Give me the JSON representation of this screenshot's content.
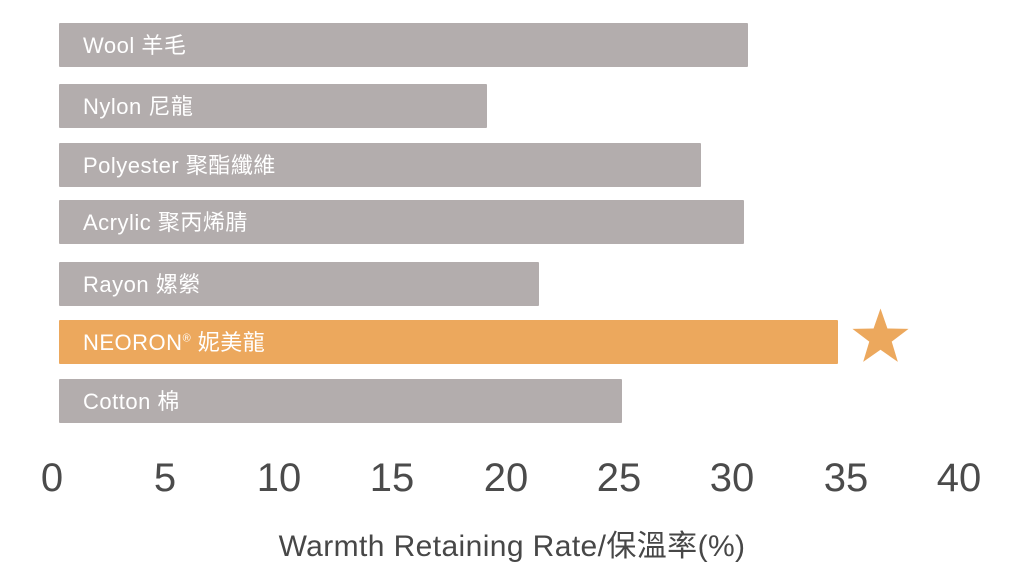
{
  "chart_data": {
    "type": "bar",
    "orientation": "horizontal",
    "categories": [
      "Wool 羊毛",
      "Nylon 尼龍",
      "Polyester 聚酯纖維",
      "Acrylic 聚丙烯腈",
      "Rayon 嫘縈",
      "NEORON® 妮美龍",
      "Cotton 棉"
    ],
    "values": [
      30.6,
      19,
      28.5,
      30.4,
      21.3,
      34.6,
      25
    ],
    "highlight_index": 5,
    "highlight_marker": "star",
    "xlabel": "Warmth Retaining Rate/保溫率(%)",
    "xlim": [
      0,
      40
    ],
    "xticks": [
      0,
      5,
      10,
      15,
      20,
      25,
      30,
      35,
      40
    ],
    "grid": false,
    "legend": false,
    "colors": {
      "bar_default": "#b3adad",
      "bar_highlight": "#eca85d",
      "star": "#eca85d",
      "bar_label_text": "#ffffff",
      "tick_text": "#4b4b4b",
      "axis_label_text": "#474747",
      "background": "#ffffff"
    }
  }
}
